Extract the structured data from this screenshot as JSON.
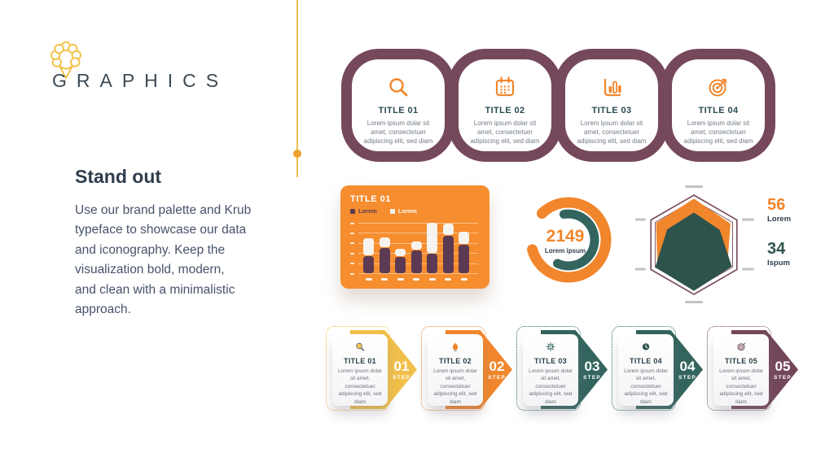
{
  "brand": {
    "name": "GRAPHICS"
  },
  "intro": {
    "title": "Stand out",
    "body": "Use our brand palette and Krub\ntypeface to showcase our data\nand iconography. Keep the\nvisualization bold, modern,\nand clean with a minimalistic\napproach."
  },
  "palette": {
    "yellow": "#F2C04A",
    "orange": "#F1862C",
    "orange_card": "#F68D2E",
    "maroon": "#76485C",
    "plum_dark": "#5C3A54",
    "teal": "#33655E",
    "teal_dark": "#2D534D",
    "ink": "#2E3D4D",
    "cream": "#F7F3EE"
  },
  "chain": {
    "items": [
      {
        "icon": "magnifier-icon",
        "title": "TITLE 01",
        "text": "Lorem ipsum dolar sit amet, consectetuer adipiscing elit, sed diam"
      },
      {
        "icon": "calendar-icon",
        "title": "TITLE 02",
        "text": "Lorem ipsum dolar sit amet, consectetuer adipiscing elit, sed diam"
      },
      {
        "icon": "bar-chart-icon",
        "title": "TITLE 03",
        "text": "Lorem ipsum dolar sit amet, consectetuer adipiscing elit, sed diam"
      },
      {
        "icon": "target-icon",
        "title": "TITLE 04",
        "text": "Lorem ipsum dolar sit amet, consectetuer adipiscing elit, sed diam"
      }
    ]
  },
  "bar_card": {
    "title": "TITLE 01",
    "legend": [
      {
        "label": "Lorem"
      },
      {
        "label": "Lorem"
      }
    ]
  },
  "donut": {
    "value": "2149",
    "label": "Lorem ipsum"
  },
  "radar": {
    "stats": [
      {
        "value": "56",
        "label": "Lorem"
      },
      {
        "value": "34",
        "label": "Ispum"
      }
    ]
  },
  "steps": [
    {
      "icon": "magnifier-icon",
      "number": "01",
      "step_label": "STEP",
      "title": "TITLE 01",
      "text": "Lorem ipsum dolar sit amet, consectetuer adipiscing elit, sed diam",
      "color": "#F2C04A"
    },
    {
      "icon": "lightbulb-icon",
      "number": "02",
      "step_label": "STEP",
      "title": "TITLE 02",
      "text": "Lorem ipsum dolar sit amet, consectetuer adipiscing elit, sed diam",
      "color": "#F1862C"
    },
    {
      "icon": "sun-icon",
      "number": "03",
      "step_label": "STEP",
      "title": "TITLE 03",
      "text": "Lorem ipsum dolar sit amet, consectetuer adipiscing elit, sed diam",
      "color": "#33655E"
    },
    {
      "icon": "clock-icon",
      "number": "04",
      "step_label": "STEP",
      "title": "TITLE 04",
      "text": "Lorem ipsum dolar sit amet, consectetuer adipiscing elit, sed diam",
      "color": "#33655E"
    },
    {
      "icon": "target-icon",
      "number": "05",
      "step_label": "STEP",
      "title": "TITLE 05",
      "text": "Lorem ipsum dolar sit amet, consectetuer adipiscing elit, sed diam",
      "color": "#74465A"
    }
  ],
  "chart_data": [
    {
      "type": "bar",
      "variant": "stacked",
      "title": "TITLE 01",
      "categories": [
        "",
        "",
        "",
        "",
        "",
        "",
        ""
      ],
      "series": [
        {
          "name": "Lorem",
          "color": "#5C3A54",
          "values": [
            20,
            30,
            19,
            27,
            23,
            44,
            33
          ]
        },
        {
          "name": "Lorem",
          "color": "#F7F3EE",
          "values": [
            20,
            11,
            9,
            9,
            35,
            13,
            15
          ]
        }
      ],
      "ylim": [
        0,
        60
      ],
      "grid": true,
      "legend_position": "top-left",
      "note": "axis tick labels are dash placeholders"
    },
    {
      "type": "donut",
      "center_value": "2149",
      "center_label": "Lorem ipsum",
      "rings": [
        {
          "name": "outer",
          "color": "#F1862C",
          "start_deg": 315,
          "sweep_deg": 300
        },
        {
          "name": "inner",
          "color": "#33655E",
          "start_deg": 350,
          "sweep_deg": 215
        }
      ]
    },
    {
      "type": "radar",
      "axes_count": 6,
      "max": 100,
      "series": [
        {
          "name": "Lorem",
          "color": "#F1862C",
          "values": [
            93,
            85,
            78,
            80,
            85,
            88
          ]
        },
        {
          "name": "Ispum",
          "color": "#2D534D",
          "values": [
            65,
            60,
            88,
            93,
            90,
            62
          ]
        }
      ],
      "stats": [
        {
          "value": "56",
          "label": "Lorem"
        },
        {
          "value": "34",
          "label": "Ispum"
        }
      ]
    }
  ]
}
